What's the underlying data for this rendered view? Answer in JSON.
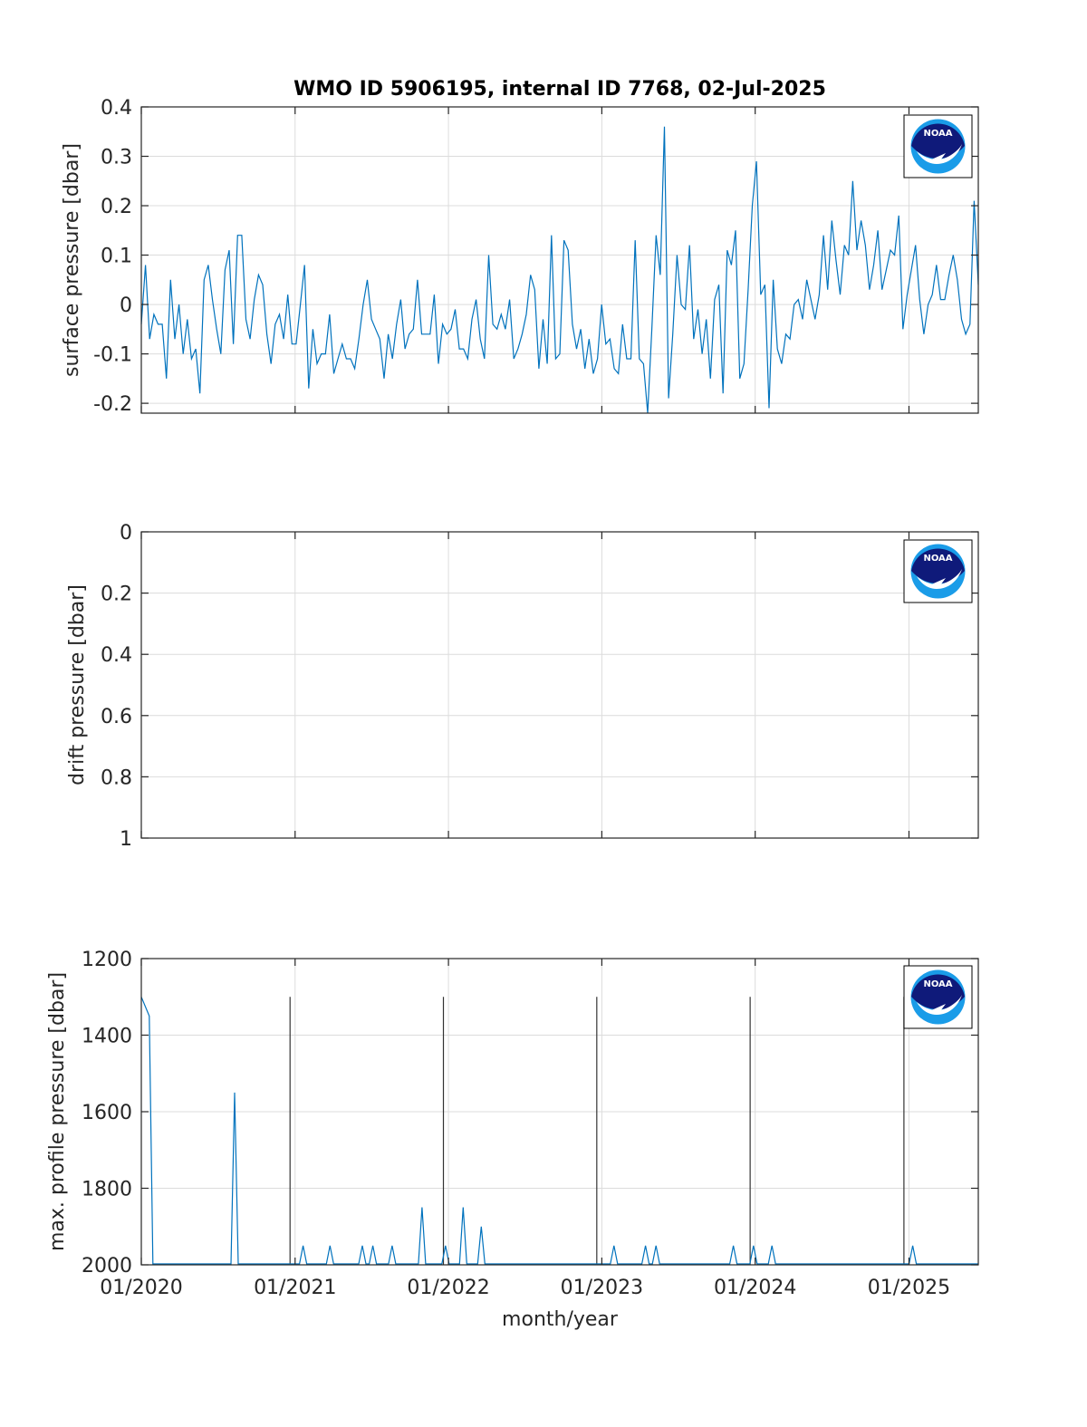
{
  "title": "WMO ID 5906195, internal ID 7768, 02-Jul-2025",
  "xlabel": "month/year",
  "x_ticks": [
    "01/2020",
    "01/2021",
    "01/2022",
    "01/2023",
    "01/2024",
    "01/2025"
  ],
  "colors": {
    "series": "#0072bd",
    "grid": "#dcdcdc",
    "axis": "#262626"
  },
  "logo_icon": "noaa-logo-icon",
  "logo_text": "NOAA",
  "chart_data": [
    {
      "type": "line",
      "ylabel": "surface pressure [dbar]",
      "ylim": [
        -0.22,
        0.4
      ],
      "y_reverse": false,
      "y_ticks": [
        "-0.2",
        "-0.1",
        "0",
        "0.1",
        "0.2",
        "0.3",
        "0.4"
      ],
      "y_tick_values": [
        -0.2,
        -0.1,
        0,
        0.1,
        0.2,
        0.3,
        0.4
      ],
      "xlim": [
        "2020-01-01",
        "2025-06-15"
      ],
      "grid": true,
      "show_x_tick_labels": false,
      "values": [
        -0.04,
        0.08,
        -0.07,
        -0.02,
        -0.04,
        -0.04,
        -0.15,
        0.05,
        -0.07,
        0,
        -0.1,
        -0.03,
        -0.11,
        -0.09,
        -0.18,
        0.05,
        0.08,
        0.01,
        -0.05,
        -0.1,
        0.07,
        0.11,
        -0.08,
        0.14,
        0.14,
        -0.03,
        -0.07,
        0.01,
        0.06,
        0.04,
        -0.06,
        -0.12,
        -0.04,
        -0.02,
        -0.07,
        0.02,
        -0.08,
        -0.08,
        0,
        0.08,
        -0.17,
        -0.05,
        -0.12,
        -0.1,
        -0.1,
        -0.02,
        -0.14,
        -0.11,
        -0.08,
        -0.11,
        -0.11,
        -0.13,
        -0.07,
        0,
        0.05,
        -0.03,
        -0.05,
        -0.07,
        -0.15,
        -0.06,
        -0.11,
        -0.04,
        0.01,
        -0.09,
        -0.06,
        -0.05,
        0.05,
        -0.06,
        -0.06,
        -0.06,
        0.02,
        -0.12,
        -0.04,
        -0.06,
        -0.05,
        -0.01,
        -0.09,
        -0.09,
        -0.11,
        -0.03,
        0.01,
        -0.07,
        -0.11,
        0.1,
        -0.04,
        -0.05,
        -0.02,
        -0.05,
        0.01,
        -0.11,
        -0.09,
        -0.06,
        -0.02,
        0.06,
        0.03,
        -0.13,
        -0.03,
        -0.12,
        0.14,
        -0.11,
        -0.1,
        0.13,
        0.11,
        -0.04,
        -0.09,
        -0.05,
        -0.13,
        -0.07,
        -0.14,
        -0.11,
        0,
        -0.08,
        -0.07,
        -0.13,
        -0.14,
        -0.04,
        -0.11,
        -0.11,
        0.13,
        -0.11,
        -0.12,
        -0.22,
        -0.05,
        0.14,
        0.06,
        0.36,
        -0.19,
        -0.06,
        0.1,
        0,
        -0.01,
        0.12,
        -0.07,
        -0.01,
        -0.1,
        -0.03,
        -0.15,
        0.01,
        0.04,
        -0.18,
        0.11,
        0.08,
        0.15,
        -0.15,
        -0.12,
        0.03,
        0.2,
        0.29,
        0.02,
        0.04,
        -0.21,
        0.05,
        -0.09,
        -0.12,
        -0.06,
        -0.07,
        0,
        0.01,
        -0.03,
        0.05,
        0.01,
        -0.03,
        0.02,
        0.14,
        0.03,
        0.17,
        0.09,
        0.02,
        0.12,
        0.1,
        0.25,
        0.11,
        0.17,
        0.12,
        0.03,
        0.08,
        0.15,
        0.03,
        0.07,
        0.11,
        0.1,
        0.18,
        -0.05,
        0.02,
        0.07,
        0.12,
        0.01,
        -0.06,
        0,
        0.02,
        0.08,
        0.01,
        0.01,
        0.06,
        0.1,
        0.05,
        -0.03,
        -0.06,
        -0.04,
        0.21,
        0.04
      ]
    },
    {
      "type": "line",
      "ylabel": "drift pressure [dbar]",
      "ylim": [
        0,
        1
      ],
      "y_reverse": true,
      "y_ticks": [
        "0",
        "0.2",
        "0.4",
        "0.6",
        "0.8",
        "1"
      ],
      "y_tick_values": [
        0,
        0.2,
        0.4,
        0.6,
        0.8,
        1
      ],
      "xlim": [
        "2020-01-01",
        "2025-06-15"
      ],
      "grid": true,
      "show_x_tick_labels": false,
      "values": []
    },
    {
      "type": "line",
      "ylabel": "max. profile pressure [dbar]",
      "ylim": [
        1200,
        2000
      ],
      "y_reverse": true,
      "y_ticks": [
        "1200",
        "1400",
        "1600",
        "1800",
        "2000"
      ],
      "y_tick_values": [
        1200,
        1400,
        1600,
        1800,
        2000
      ],
      "xlim": [
        "2020-01-01",
        "2025-06-15"
      ],
      "grid": true,
      "show_x_tick_labels": true,
      "year_markers": [
        "2020-12-20",
        "2021-12-20",
        "2022-12-20",
        "2023-12-20",
        "2024-12-20"
      ],
      "year_marker_top": 1300,
      "spikes": [
        {
          "date": "2020-01-20",
          "value": 1350
        },
        {
          "date": "2020-08-10",
          "value": 1550
        },
        {
          "date": "2021-01-20",
          "value": 1950
        },
        {
          "date": "2021-03-25",
          "value": 1950
        },
        {
          "date": "2021-06-10",
          "value": 1950
        },
        {
          "date": "2021-07-05",
          "value": 1950
        },
        {
          "date": "2021-08-20",
          "value": 1950
        },
        {
          "date": "2021-10-30",
          "value": 1850
        },
        {
          "date": "2021-12-25",
          "value": 1950
        },
        {
          "date": "2022-02-05",
          "value": 1850
        },
        {
          "date": "2022-03-20",
          "value": 1900
        },
        {
          "date": "2023-01-30",
          "value": 1950
        },
        {
          "date": "2023-04-15",
          "value": 1950
        },
        {
          "date": "2023-05-10",
          "value": 1950
        },
        {
          "date": "2023-11-10",
          "value": 1950
        },
        {
          "date": "2023-12-28",
          "value": 1950
        },
        {
          "date": "2024-02-10",
          "value": 1950
        },
        {
          "date": "2025-01-10",
          "value": 1950
        }
      ],
      "start_value": 1300,
      "baseline": 2000
    }
  ]
}
